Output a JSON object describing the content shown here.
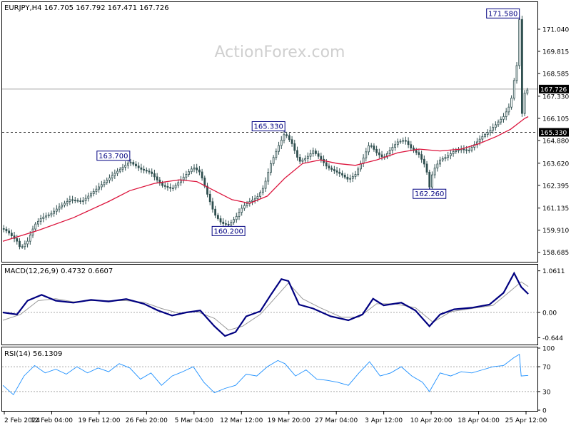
{
  "header": {
    "title_line": "EURJPY,H4  167.705 167.792 167.471 167.726",
    "watermark": "ActionForex.com"
  },
  "chart_data": [
    {
      "type": "candlestick",
      "symbol": "EURJPY",
      "timeframe": "H4",
      "ohlc": {
        "open": 167.705,
        "high": 167.792,
        "low": 167.471,
        "close": 167.726
      },
      "ylim": [
        158.2,
        172.5
      ],
      "y_ticks": [
        "171.040",
        "169.815",
        "168.585",
        "167.330",
        "166.105",
        "164.880",
        "163.620",
        "162.395",
        "161.135",
        "159.910",
        "158.685"
      ],
      "x_ticks": [
        "2 Feb 2024",
        "12 Feb 04:00",
        "19 Feb 12:00",
        "26 Feb 20:00",
        "5 Mar 04:00",
        "12 Mar 12:00",
        "19 Mar 20:00",
        "27 Mar 04:00",
        "3 Apr 12:00",
        "10 Apr 20:00",
        "18 Apr 04:00",
        "25 Apr 12:00"
      ],
      "current_price": {
        "label": "167.726",
        "value": 167.726
      },
      "horizontal_lines": [
        {
          "label": "165.330",
          "value": 165.33,
          "style": "dashed"
        }
      ],
      "price_path": [
        {
          "x": 0,
          "y": 160.0
        },
        {
          "x": 3,
          "y": 159.8
        },
        {
          "x": 5,
          "y": 159.6
        },
        {
          "x": 8,
          "y": 159.3
        },
        {
          "x": 10,
          "y": 158.9
        },
        {
          "x": 14,
          "y": 159.3
        },
        {
          "x": 18,
          "y": 160.2
        },
        {
          "x": 22,
          "y": 160.6
        },
        {
          "x": 27,
          "y": 160.8
        },
        {
          "x": 32,
          "y": 161.2
        },
        {
          "x": 38,
          "y": 161.6
        },
        {
          "x": 45,
          "y": 161.5
        },
        {
          "x": 52,
          "y": 162.1
        },
        {
          "x": 58,
          "y": 162.6
        },
        {
          "x": 64,
          "y": 163.1
        },
        {
          "x": 68,
          "y": 163.4
        },
        {
          "x": 72,
          "y": 163.7
        },
        {
          "x": 78,
          "y": 163.3
        },
        {
          "x": 84,
          "y": 163.1
        },
        {
          "x": 90,
          "y": 162.4
        },
        {
          "x": 96,
          "y": 162.2
        },
        {
          "x": 102,
          "y": 162.8
        },
        {
          "x": 108,
          "y": 163.4
        },
        {
          "x": 112,
          "y": 163.1
        },
        {
          "x": 116,
          "y": 161.9
        },
        {
          "x": 120,
          "y": 160.8
        },
        {
          "x": 124,
          "y": 160.3
        },
        {
          "x": 128,
          "y": 160.2
        },
        {
          "x": 132,
          "y": 160.6
        },
        {
          "x": 136,
          "y": 161.2
        },
        {
          "x": 140,
          "y": 161.5
        },
        {
          "x": 144,
          "y": 161.7
        },
        {
          "x": 148,
          "y": 162.3
        },
        {
          "x": 152,
          "y": 163.6
        },
        {
          "x": 156,
          "y": 164.5
        },
        {
          "x": 160,
          "y": 165.3
        },
        {
          "x": 164,
          "y": 164.7
        },
        {
          "x": 168,
          "y": 163.7
        },
        {
          "x": 172,
          "y": 163.9
        },
        {
          "x": 176,
          "y": 164.3
        },
        {
          "x": 180,
          "y": 163.9
        },
        {
          "x": 184,
          "y": 163.4
        },
        {
          "x": 188,
          "y": 163.2
        },
        {
          "x": 192,
          "y": 163.0
        },
        {
          "x": 196,
          "y": 162.7
        },
        {
          "x": 200,
          "y": 163.0
        },
        {
          "x": 204,
          "y": 163.8
        },
        {
          "x": 208,
          "y": 164.7
        },
        {
          "x": 212,
          "y": 164.2
        },
        {
          "x": 216,
          "y": 163.9
        },
        {
          "x": 220,
          "y": 164.4
        },
        {
          "x": 224,
          "y": 164.8
        },
        {
          "x": 228,
          "y": 164.9
        },
        {
          "x": 232,
          "y": 164.4
        },
        {
          "x": 236,
          "y": 164.1
        },
        {
          "x": 240,
          "y": 163.4
        },
        {
          "x": 242,
          "y": 162.3
        },
        {
          "x": 244,
          "y": 163.2
        },
        {
          "x": 248,
          "y": 163.8
        },
        {
          "x": 252,
          "y": 164.0
        },
        {
          "x": 256,
          "y": 164.3
        },
        {
          "x": 260,
          "y": 164.4
        },
        {
          "x": 264,
          "y": 164.3
        },
        {
          "x": 268,
          "y": 164.7
        },
        {
          "x": 272,
          "y": 165.1
        },
        {
          "x": 276,
          "y": 165.4
        },
        {
          "x": 280,
          "y": 165.8
        },
        {
          "x": 284,
          "y": 166.2
        },
        {
          "x": 288,
          "y": 166.9
        },
        {
          "x": 290,
          "y": 168.2
        },
        {
          "x": 292,
          "y": 169.3
        },
        {
          "x": 293,
          "y": 171.58
        },
        {
          "x": 294,
          "y": 166.0
        },
        {
          "x": 296,
          "y": 167.5
        },
        {
          "x": 298,
          "y": 167.73
        }
      ],
      "moving_average": [
        {
          "x": 0,
          "y": 159.3
        },
        {
          "x": 20,
          "y": 159.9
        },
        {
          "x": 40,
          "y": 160.6
        },
        {
          "x": 60,
          "y": 161.5
        },
        {
          "x": 72,
          "y": 162.1
        },
        {
          "x": 86,
          "y": 162.5
        },
        {
          "x": 100,
          "y": 162.7
        },
        {
          "x": 110,
          "y": 162.6
        },
        {
          "x": 120,
          "y": 162.1
        },
        {
          "x": 130,
          "y": 161.6
        },
        {
          "x": 140,
          "y": 161.4
        },
        {
          "x": 150,
          "y": 161.8
        },
        {
          "x": 160,
          "y": 162.8
        },
        {
          "x": 170,
          "y": 163.6
        },
        {
          "x": 180,
          "y": 163.8
        },
        {
          "x": 190,
          "y": 163.6
        },
        {
          "x": 200,
          "y": 163.5
        },
        {
          "x": 212,
          "y": 163.8
        },
        {
          "x": 224,
          "y": 164.2
        },
        {
          "x": 236,
          "y": 164.4
        },
        {
          "x": 248,
          "y": 164.3
        },
        {
          "x": 260,
          "y": 164.4
        },
        {
          "x": 270,
          "y": 164.7
        },
        {
          "x": 280,
          "y": 165.1
        },
        {
          "x": 288,
          "y": 165.5
        },
        {
          "x": 292,
          "y": 165.8
        },
        {
          "x": 296,
          "y": 166.1
        },
        {
          "x": 298,
          "y": 166.2
        }
      ],
      "annotations": [
        {
          "label": "163.700",
          "x": 72,
          "y": 163.7,
          "position": "above"
        },
        {
          "label": "160.200",
          "x": 128,
          "y": 160.2,
          "position": "below"
        },
        {
          "label": "165.330",
          "x": 160,
          "y": 165.33,
          "position": "above"
        },
        {
          "label": "162.260",
          "x": 242,
          "y": 162.26,
          "position": "below"
        },
        {
          "label": "171.580",
          "x": 293,
          "y": 171.58,
          "position": "above"
        }
      ],
      "colors": {
        "candle": "#2f4f4f",
        "moving_average": "#dc143c",
        "label_border": "#000080",
        "label_text": "#000080",
        "price_label_bg": "#000000",
        "price_label_text": "#ffffff",
        "grid_line": "#a9a9a9"
      }
    },
    {
      "type": "line",
      "title": "MACD(12,26,9)  0.4732  0.6607",
      "ylim": [
        -0.8,
        1.2
      ],
      "y_ticks": [
        "1.0611",
        "0.00",
        "-0.644"
      ],
      "zero_line": 0,
      "series": [
        {
          "role": "macd",
          "color": "#000080",
          "points": [
            {
              "x": 0,
              "y": 0.0
            },
            {
              "x": 8,
              "y": -0.05
            },
            {
              "x": 14,
              "y": 0.3
            },
            {
              "x": 22,
              "y": 0.45
            },
            {
              "x": 30,
              "y": 0.3
            },
            {
              "x": 40,
              "y": 0.25
            },
            {
              "x": 50,
              "y": 0.32
            },
            {
              "x": 60,
              "y": 0.28
            },
            {
              "x": 70,
              "y": 0.34
            },
            {
              "x": 80,
              "y": 0.22
            },
            {
              "x": 88,
              "y": 0.05
            },
            {
              "x": 96,
              "y": -0.08
            },
            {
              "x": 104,
              "y": 0.0
            },
            {
              "x": 112,
              "y": 0.05
            },
            {
              "x": 120,
              "y": -0.35
            },
            {
              "x": 126,
              "y": -0.6
            },
            {
              "x": 132,
              "y": -0.5
            },
            {
              "x": 138,
              "y": -0.1
            },
            {
              "x": 146,
              "y": 0.03
            },
            {
              "x": 152,
              "y": 0.45
            },
            {
              "x": 158,
              "y": 0.85
            },
            {
              "x": 162,
              "y": 0.8
            },
            {
              "x": 168,
              "y": 0.2
            },
            {
              "x": 176,
              "y": 0.1
            },
            {
              "x": 186,
              "y": -0.1
            },
            {
              "x": 196,
              "y": -0.2
            },
            {
              "x": 204,
              "y": -0.05
            },
            {
              "x": 210,
              "y": 0.35
            },
            {
              "x": 216,
              "y": 0.18
            },
            {
              "x": 226,
              "y": 0.25
            },
            {
              "x": 234,
              "y": 0.05
            },
            {
              "x": 242,
              "y": -0.35
            },
            {
              "x": 248,
              "y": -0.05
            },
            {
              "x": 256,
              "y": 0.08
            },
            {
              "x": 266,
              "y": 0.12
            },
            {
              "x": 276,
              "y": 0.2
            },
            {
              "x": 284,
              "y": 0.5
            },
            {
              "x": 290,
              "y": 1.0
            },
            {
              "x": 294,
              "y": 0.65
            },
            {
              "x": 298,
              "y": 0.47
            }
          ]
        },
        {
          "role": "signal",
          "color": "#9a9a9a",
          "points": [
            {
              "x": 0,
              "y": -0.2
            },
            {
              "x": 10,
              "y": -0.05
            },
            {
              "x": 20,
              "y": 0.3
            },
            {
              "x": 30,
              "y": 0.35
            },
            {
              "x": 40,
              "y": 0.27
            },
            {
              "x": 50,
              "y": 0.3
            },
            {
              "x": 60,
              "y": 0.3
            },
            {
              "x": 70,
              "y": 0.3
            },
            {
              "x": 80,
              "y": 0.26
            },
            {
              "x": 90,
              "y": 0.1
            },
            {
              "x": 100,
              "y": -0.02
            },
            {
              "x": 110,
              "y": 0.02
            },
            {
              "x": 120,
              "y": -0.15
            },
            {
              "x": 128,
              "y": -0.45
            },
            {
              "x": 136,
              "y": -0.35
            },
            {
              "x": 146,
              "y": -0.05
            },
            {
              "x": 154,
              "y": 0.35
            },
            {
              "x": 162,
              "y": 0.75
            },
            {
              "x": 170,
              "y": 0.35
            },
            {
              "x": 180,
              "y": 0.12
            },
            {
              "x": 192,
              "y": -0.12
            },
            {
              "x": 202,
              "y": -0.12
            },
            {
              "x": 212,
              "y": 0.22
            },
            {
              "x": 222,
              "y": 0.22
            },
            {
              "x": 234,
              "y": 0.12
            },
            {
              "x": 244,
              "y": -0.25
            },
            {
              "x": 254,
              "y": 0.02
            },
            {
              "x": 266,
              "y": 0.1
            },
            {
              "x": 278,
              "y": 0.18
            },
            {
              "x": 288,
              "y": 0.55
            },
            {
              "x": 294,
              "y": 0.78
            },
            {
              "x": 298,
              "y": 0.66
            }
          ]
        }
      ]
    },
    {
      "type": "line",
      "title": "RSI(14) 56.1309",
      "ylim": [
        0,
        100
      ],
      "y_ticks": [
        "100",
        "70",
        "30",
        "0"
      ],
      "levels": [
        70,
        30
      ],
      "series": [
        {
          "role": "rsi",
          "color": "#1e90ff",
          "points": [
            {
              "x": 0,
              "y": 40
            },
            {
              "x": 6,
              "y": 25
            },
            {
              "x": 12,
              "y": 55
            },
            {
              "x": 18,
              "y": 72
            },
            {
              "x": 24,
              "y": 60
            },
            {
              "x": 30,
              "y": 66
            },
            {
              "x": 36,
              "y": 58
            },
            {
              "x": 42,
              "y": 70
            },
            {
              "x": 48,
              "y": 60
            },
            {
              "x": 54,
              "y": 68
            },
            {
              "x": 60,
              "y": 62
            },
            {
              "x": 66,
              "y": 75
            },
            {
              "x": 72,
              "y": 68
            },
            {
              "x": 78,
              "y": 50
            },
            {
              "x": 84,
              "y": 60
            },
            {
              "x": 90,
              "y": 40
            },
            {
              "x": 96,
              "y": 55
            },
            {
              "x": 102,
              "y": 62
            },
            {
              "x": 108,
              "y": 70
            },
            {
              "x": 114,
              "y": 45
            },
            {
              "x": 120,
              "y": 28
            },
            {
              "x": 126,
              "y": 35
            },
            {
              "x": 132,
              "y": 40
            },
            {
              "x": 138,
              "y": 58
            },
            {
              "x": 144,
              "y": 55
            },
            {
              "x": 150,
              "y": 70
            },
            {
              "x": 156,
              "y": 80
            },
            {
              "x": 160,
              "y": 75
            },
            {
              "x": 166,
              "y": 55
            },
            {
              "x": 172,
              "y": 65
            },
            {
              "x": 178,
              "y": 50
            },
            {
              "x": 184,
              "y": 48
            },
            {
              "x": 190,
              "y": 45
            },
            {
              "x": 196,
              "y": 40
            },
            {
              "x": 202,
              "y": 60
            },
            {
              "x": 208,
              "y": 78
            },
            {
              "x": 214,
              "y": 55
            },
            {
              "x": 220,
              "y": 60
            },
            {
              "x": 226,
              "y": 70
            },
            {
              "x": 232,
              "y": 55
            },
            {
              "x": 238,
              "y": 45
            },
            {
              "x": 242,
              "y": 30
            },
            {
              "x": 248,
              "y": 60
            },
            {
              "x": 254,
              "y": 55
            },
            {
              "x": 260,
              "y": 62
            },
            {
              "x": 266,
              "y": 60
            },
            {
              "x": 272,
              "y": 65
            },
            {
              "x": 278,
              "y": 70
            },
            {
              "x": 284,
              "y": 72
            },
            {
              "x": 290,
              "y": 85
            },
            {
              "x": 293,
              "y": 90
            },
            {
              "x": 294,
              "y": 55
            },
            {
              "x": 298,
              "y": 56
            }
          ]
        }
      ]
    }
  ]
}
